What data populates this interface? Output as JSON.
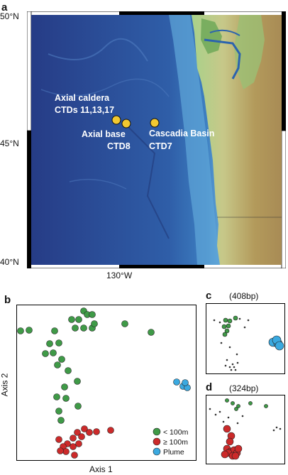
{
  "panels": {
    "a": {
      "label": "a"
    },
    "b": {
      "label": "b"
    },
    "c": {
      "label": "c",
      "title": "(408bp)"
    },
    "d": {
      "label": "d",
      "title": "(324bp)"
    }
  },
  "map": {
    "lat_ticks": [
      "50°N",
      "45°N",
      "40°N"
    ],
    "lon_tick": "130°W",
    "site_labels": {
      "axial_caldera_1": "Axial caldera",
      "axial_caldera_2": "CTDs 11,13,17",
      "axial_base_1": "Axial base",
      "axial_base_2": "CTD8",
      "cascadia_1": "Cascadia Basin",
      "cascadia_2": "CTD7"
    },
    "marker_color": "#f2c830"
  },
  "ordination": {
    "axis1_label": "Axis 1",
    "axis2_label": "Axis 2",
    "legend": [
      {
        "label": "< 100m",
        "color": "#3f9a47"
      },
      {
        "label": "≥ 100m",
        "color": "#cc2a2a"
      },
      {
        "label": "Plume",
        "color": "#3aa9e0"
      }
    ]
  }
}
